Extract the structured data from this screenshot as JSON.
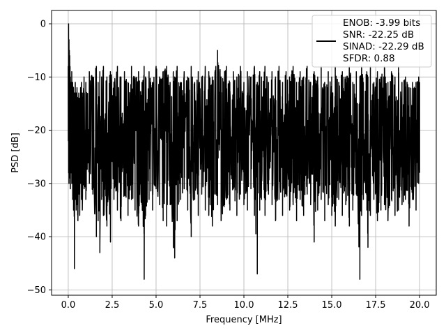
{
  "chart_data": {
    "type": "line",
    "title": "",
    "xlabel": "Frequency [MHz]",
    "ylabel": "PSD [dB]",
    "xlim": [
      -0.95,
      20.95
    ],
    "ylim": [
      -51,
      2.5
    ],
    "xticks": [
      0.0,
      2.5,
      5.0,
      7.5,
      10.0,
      12.5,
      15.0,
      17.5,
      20.0
    ],
    "xtick_labels": [
      "0.0",
      "2.5",
      "5.0",
      "7.5",
      "10.0",
      "12.5",
      "15.0",
      "17.5",
      "20.0"
    ],
    "yticks": [
      0,
      -10,
      -20,
      -30,
      -40,
      -50
    ],
    "ytick_labels": [
      "0",
      "−10",
      "−20",
      "−30",
      "−40",
      "−50"
    ],
    "grid": true,
    "legend_position": "top-right",
    "series": [
      {
        "name": "ENOB: -3.99 bits\nSNR: -22.25 dB\nSINAD: -22.29 dB\nSFDR: 0.88",
        "color": "#000000",
        "x": [
          0.0,
          0.02,
          0.04,
          0.06,
          0.08,
          0.1,
          0.12,
          0.16,
          0.2,
          0.25,
          0.3,
          0.35,
          0.4,
          0.45,
          0.5,
          0.55,
          0.6,
          0.65,
          0.7,
          0.75,
          0.8,
          0.9,
          1.0,
          1.2,
          1.4,
          1.6,
          1.7,
          1.8,
          1.9,
          2.0,
          2.2,
          2.4,
          2.6,
          2.8,
          3.0,
          3.2,
          3.4,
          3.6,
          3.8,
          4.0,
          4.2,
          4.32,
          4.4,
          4.6,
          4.8,
          5.0,
          5.2,
          5.4,
          5.6,
          5.8,
          5.98,
          6.06,
          6.2,
          6.4,
          6.6,
          6.8,
          7.0,
          7.2,
          7.4,
          7.6,
          7.8,
          8.0,
          8.2,
          8.4,
          8.5,
          8.7,
          8.9,
          9.0,
          9.2,
          9.4,
          9.6,
          9.8,
          10.0,
          10.2,
          10.4,
          10.6,
          10.76,
          10.9,
          11.0,
          11.2,
          11.4,
          11.6,
          11.8,
          12.0,
          12.2,
          12.4,
          12.6,
          12.8,
          13.0,
          13.2,
          13.4,
          13.6,
          13.8,
          14.0,
          14.2,
          14.4,
          14.6,
          14.8,
          15.0,
          15.2,
          15.4,
          15.6,
          15.8,
          16.0,
          16.2,
          16.4,
          16.6,
          16.7,
          16.8,
          17.0,
          17.06,
          17.2,
          17.4,
          17.6,
          17.8,
          18.0,
          18.2,
          18.4,
          18.6,
          18.8,
          19.0,
          19.2,
          19.4,
          19.6,
          19.8,
          19.95,
          20.0
        ],
        "upper": [
          -8,
          0,
          -3,
          -5,
          -6,
          -8,
          -10,
          -11,
          -9,
          -11,
          -12,
          -13,
          -11,
          -13,
          -12,
          -14,
          -13,
          -14,
          -12,
          -11,
          -13,
          -10,
          -11,
          -9,
          -10,
          -8,
          -11,
          -9,
          -10,
          -8,
          -10,
          -9,
          -11,
          -8,
          -10,
          -9,
          -11,
          -8,
          -10,
          -9,
          -11,
          -8,
          -10,
          -9,
          -11,
          -8,
          -10,
          -9,
          -8,
          -11,
          -9,
          -10,
          -8,
          -11,
          -9,
          -10,
          -8,
          -11,
          -9,
          -10,
          -8,
          -9,
          -10,
          -8,
          -5,
          -10,
          -9,
          -8,
          -11,
          -9,
          -10,
          -8,
          -11,
          -9,
          -10,
          -8,
          -11,
          -9,
          -10,
          -8,
          -11,
          -9,
          -10,
          -8,
          -11,
          -9,
          -10,
          -8,
          -11,
          -9,
          -10,
          -8,
          -11,
          -9,
          -10,
          -8,
          -11,
          -9,
          -10,
          -8,
          -11,
          -9,
          -10,
          -8,
          -11,
          -9,
          -10,
          -8,
          -11,
          -9,
          -10,
          -8,
          -11,
          -9,
          -10,
          -8,
          -11,
          -9,
          -10,
          -8,
          -11,
          -10,
          -12,
          -11,
          -11,
          -10,
          -11
        ],
        "lower": [
          -22,
          -28,
          -30,
          -24,
          -27,
          -29,
          -31,
          -28,
          -30,
          -33,
          -35,
          -46,
          -33,
          -35,
          -34,
          -37,
          -32,
          -36,
          -30,
          -33,
          -35,
          -31,
          -33,
          -30,
          -32,
          -40,
          -37,
          -43,
          -33,
          -36,
          -38,
          -41,
          -33,
          -35,
          -37,
          -32,
          -36,
          -33,
          -35,
          -38,
          -34,
          -48,
          -36,
          -33,
          -35,
          -31,
          -34,
          -37,
          -38,
          -34,
          -42,
          -44,
          -37,
          -33,
          -31,
          -35,
          -40,
          -33,
          -36,
          -32,
          -35,
          -36,
          -38,
          -32,
          -34,
          -37,
          -34,
          -33,
          -35,
          -31,
          -36,
          -32,
          -34,
          -35,
          -31,
          -36,
          -47,
          -35,
          -33,
          -36,
          -32,
          -34,
          -37,
          -33,
          -36,
          -32,
          -35,
          -34,
          -37,
          -33,
          -36,
          -32,
          -34,
          -41,
          -35,
          -33,
          -37,
          -34,
          -36,
          -38,
          -33,
          -36,
          -34,
          -38,
          -35,
          -32,
          -48,
          -36,
          -33,
          -35,
          -42,
          -36,
          -33,
          -37,
          -35,
          -34,
          -37,
          -33,
          -36,
          -35,
          -34,
          -33,
          -38,
          -33,
          -35,
          -30,
          -28
        ]
      }
    ],
    "peak": {
      "x": 0.02,
      "y": 0
    }
  }
}
